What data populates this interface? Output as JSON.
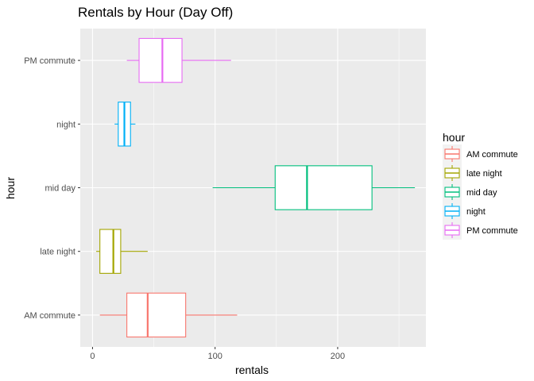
{
  "chart_data": {
    "type": "boxplot",
    "orientation": "horizontal",
    "title": "Rentals by Hour (Day Off)",
    "xlabel": "rentals",
    "ylabel": "hour",
    "xlim": [
      -10,
      272
    ],
    "xticks": [
      0,
      100,
      200
    ],
    "grid": true,
    "legend": {
      "title": "hour",
      "placement": "right",
      "entries": [
        "AM commute",
        "late night",
        "mid day",
        "night",
        "PM commute"
      ]
    },
    "categories": [
      "AM commute",
      "late night",
      "mid day",
      "night",
      "PM commute"
    ],
    "colors": {
      "AM commute": "#F8766D",
      "late night": "#A3A500",
      "mid day": "#00BF7D",
      "night": "#00B0F6",
      "PM commute": "#E76BF3",
      "panel_bg": "#EBEBEB",
      "grid": "#FFFFFF"
    },
    "boxes": [
      {
        "name": "AM commute",
        "whisker_low": 6,
        "q1": 28,
        "median": 45,
        "q3": 76,
        "whisker_high": 118
      },
      {
        "name": "late night",
        "whisker_low": 3,
        "q1": 6,
        "median": 17,
        "q3": 23,
        "whisker_high": 45
      },
      {
        "name": "mid day",
        "whisker_low": 98,
        "q1": 149,
        "median": 175,
        "q3": 228,
        "whisker_high": 263
      },
      {
        "name": "night",
        "whisker_low": 18,
        "q1": 21,
        "median": 26,
        "q3": 31,
        "whisker_high": 35
      },
      {
        "name": "PM commute",
        "whisker_low": 28,
        "q1": 38,
        "median": 57,
        "q3": 73,
        "whisker_high": 113
      }
    ]
  }
}
